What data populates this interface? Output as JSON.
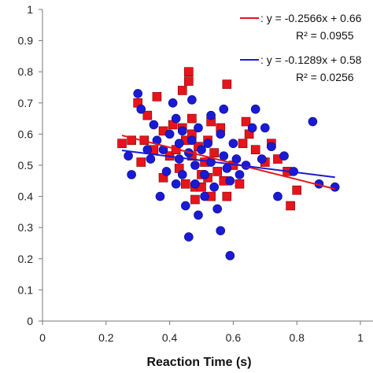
{
  "chart_data": {
    "type": "scatter",
    "title": "",
    "xlabel": "Reaction Time (s)",
    "ylabel": "",
    "xlim": [
      0,
      1
    ],
    "ylim": [
      0,
      1
    ],
    "x_ticks": [
      "0",
      "0.2",
      "0.4",
      "0.6",
      "0.8",
      "1"
    ],
    "y_ticks": [
      "0",
      "0.1",
      "0.2",
      "0.3",
      "0.4",
      "0.5",
      "0.6",
      "0.7",
      "0.8",
      "0.9",
      "1"
    ],
    "grid": false,
    "legend_position": "top-right",
    "series": [
      {
        "color": "#e8141b",
        "marker": "square",
        "trendline": {
          "slope": -0.2566,
          "intercept": 0.66,
          "x_range": [
            0.25,
            0.92
          ]
        },
        "equation": ": y = -0.2566x + 0.66",
        "r2": "R² = 0.0955",
        "points": [
          [
            0.25,
            0.57
          ],
          [
            0.28,
            0.58
          ],
          [
            0.3,
            0.7
          ],
          [
            0.31,
            0.51
          ],
          [
            0.32,
            0.58
          ],
          [
            0.33,
            0.66
          ],
          [
            0.35,
            0.55
          ],
          [
            0.36,
            0.72
          ],
          [
            0.38,
            0.61
          ],
          [
            0.38,
            0.46
          ],
          [
            0.4,
            0.53
          ],
          [
            0.41,
            0.63
          ],
          [
            0.42,
            0.55
          ],
          [
            0.43,
            0.49
          ],
          [
            0.44,
            0.74
          ],
          [
            0.44,
            0.62
          ],
          [
            0.45,
            0.58
          ],
          [
            0.45,
            0.44
          ],
          [
            0.46,
            0.8
          ],
          [
            0.46,
            0.77
          ],
          [
            0.47,
            0.65
          ],
          [
            0.47,
            0.6
          ],
          [
            0.47,
            0.53
          ],
          [
            0.48,
            0.43
          ],
          [
            0.48,
            0.39
          ],
          [
            0.49,
            0.56
          ],
          [
            0.5,
            0.47
          ],
          [
            0.5,
            0.43
          ],
          [
            0.51,
            0.51
          ],
          [
            0.52,
            0.58
          ],
          [
            0.52,
            0.46
          ],
          [
            0.53,
            0.4
          ],
          [
            0.53,
            0.64
          ],
          [
            0.54,
            0.54
          ],
          [
            0.55,
            0.48
          ],
          [
            0.56,
            0.62
          ],
          [
            0.57,
            0.45
          ],
          [
            0.58,
            0.76
          ],
          [
            0.58,
            0.4
          ],
          [
            0.6,
            0.5
          ],
          [
            0.62,
            0.44
          ],
          [
            0.63,
            0.57
          ],
          [
            0.64,
            0.64
          ],
          [
            0.65,
            0.6
          ],
          [
            0.67,
            0.55
          ],
          [
            0.7,
            0.51
          ],
          [
            0.72,
            0.57
          ],
          [
            0.74,
            0.52
          ],
          [
            0.77,
            0.48
          ],
          [
            0.78,
            0.37
          ],
          [
            0.8,
            0.42
          ]
        ]
      },
      {
        "color": "#1a1ad6",
        "marker": "circle",
        "trendline": {
          "slope": -0.1289,
          "intercept": 0.58,
          "x_range": [
            0.25,
            0.92
          ]
        },
        "equation": ": y = -0.1289x + 0.58",
        "r2": "R² = 0.0256",
        "points": [
          [
            0.27,
            0.53
          ],
          [
            0.28,
            0.47
          ],
          [
            0.3,
            0.73
          ],
          [
            0.31,
            0.68
          ],
          [
            0.33,
            0.55
          ],
          [
            0.34,
            0.52
          ],
          [
            0.35,
            0.63
          ],
          [
            0.36,
            0.58
          ],
          [
            0.37,
            0.4
          ],
          [
            0.38,
            0.55
          ],
          [
            0.39,
            0.48
          ],
          [
            0.4,
            0.6
          ],
          [
            0.41,
            0.7
          ],
          [
            0.42,
            0.65
          ],
          [
            0.42,
            0.44
          ],
          [
            0.43,
            0.57
          ],
          [
            0.43,
            0.52
          ],
          [
            0.44,
            0.61
          ],
          [
            0.44,
            0.47
          ],
          [
            0.45,
            0.37
          ],
          [
            0.46,
            0.54
          ],
          [
            0.46,
            0.27
          ],
          [
            0.47,
            0.71
          ],
          [
            0.47,
            0.58
          ],
          [
            0.48,
            0.5
          ],
          [
            0.48,
            0.44
          ],
          [
            0.49,
            0.62
          ],
          [
            0.49,
            0.34
          ],
          [
            0.5,
            0.55
          ],
          [
            0.51,
            0.47
          ],
          [
            0.51,
            0.4
          ],
          [
            0.52,
            0.57
          ],
          [
            0.53,
            0.66
          ],
          [
            0.53,
            0.51
          ],
          [
            0.54,
            0.43
          ],
          [
            0.55,
            0.36
          ],
          [
            0.56,
            0.29
          ],
          [
            0.56,
            0.6
          ],
          [
            0.57,
            0.53
          ],
          [
            0.57,
            0.68
          ],
          [
            0.58,
            0.49
          ],
          [
            0.59,
            0.45
          ],
          [
            0.59,
            0.21
          ],
          [
            0.6,
            0.57
          ],
          [
            0.61,
            0.52
          ],
          [
            0.62,
            0.47
          ],
          [
            0.64,
            0.5
          ],
          [
            0.66,
            0.62
          ],
          [
            0.67,
            0.68
          ],
          [
            0.69,
            0.52
          ],
          [
            0.7,
            0.62
          ],
          [
            0.72,
            0.56
          ],
          [
            0.74,
            0.4
          ],
          [
            0.76,
            0.53
          ],
          [
            0.79,
            0.48
          ],
          [
            0.85,
            0.64
          ],
          [
            0.87,
            0.44
          ],
          [
            0.92,
            0.43
          ]
        ]
      }
    ]
  }
}
